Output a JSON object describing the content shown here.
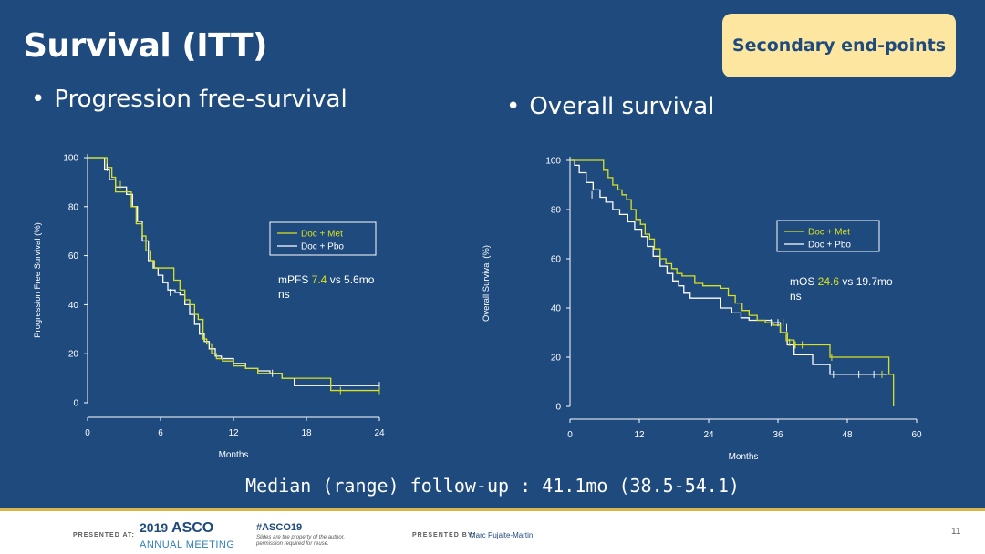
{
  "slide": {
    "title": "Survival (ITT)",
    "badge": "Secondary end-points",
    "followup": "Median (range) follow-up : 41.1mo (38.5-54.1)"
  },
  "colors": {
    "background": "#1e4a7e",
    "badge_bg": "#fce6a0",
    "met": "#d8e020",
    "pbo": "#ffffff",
    "footer_accent": "#d9b54a"
  },
  "chart_data": [
    {
      "type": "line",
      "title": "Progression free-survival",
      "xlabel": "Months",
      "ylabel": "Progression Free Survival (%)",
      "xlim": [
        0,
        24
      ],
      "ylim": [
        0,
        100
      ],
      "xticks": [
        0,
        6,
        12,
        18,
        24
      ],
      "yticks": [
        0,
        20,
        40,
        60,
        80,
        100
      ],
      "legend": [
        "Doc + Met",
        "Doc + Pbo"
      ],
      "annotation": {
        "prefix": "mPFS ",
        "highlight": "7.4",
        "suffix": " vs 5.6mo",
        "line2": "ns"
      },
      "series": [
        {
          "name": "Doc + Met",
          "color": "#d8e020",
          "x": [
            0,
            1.2,
            1.6,
            2.0,
            2.3,
            3.2,
            3.6,
            4.0,
            4.5,
            4.8,
            5.2,
            5.5,
            5.8,
            6.2,
            7.1,
            7.6,
            8.0,
            8.4,
            8.8,
            9.1,
            9.5,
            9.8,
            10.2,
            10.6,
            11.1,
            12.0,
            13.0,
            14.0,
            15.0,
            16.0,
            18.5,
            20.0,
            24.0
          ],
          "y": [
            100,
            100,
            96,
            92,
            86,
            86,
            80,
            73,
            68,
            62,
            58,
            55,
            55,
            55,
            50,
            46,
            42,
            40,
            36,
            34,
            26,
            24,
            20,
            18,
            17,
            15,
            14,
            12,
            12,
            10,
            10,
            5,
            5
          ]
        },
        {
          "name": "Doc + Pbo",
          "color": "#ffffff",
          "x": [
            0,
            1.0,
            1.4,
            1.8,
            2.3,
            3.2,
            3.7,
            4.1,
            4.5,
            5.0,
            5.4,
            5.8,
            6.2,
            6.6,
            7.2,
            7.6,
            8.0,
            8.4,
            8.8,
            9.2,
            9.6,
            10.0,
            10.5,
            11.0,
            12.0,
            13.0,
            14.0,
            15.0,
            16.0,
            17.0,
            24.0
          ],
          "y": [
            100,
            100,
            95,
            91,
            88,
            85,
            80,
            74,
            66,
            58,
            55,
            52,
            49,
            46,
            45,
            44,
            40,
            36,
            32,
            28,
            25,
            22,
            19,
            18,
            16,
            14,
            13,
            12,
            10,
            7,
            7
          ]
        }
      ],
      "censor_met": [
        [
          2.7,
          89
        ],
        [
          20.8,
          5
        ],
        [
          24.0,
          5
        ]
      ],
      "censor_pbo": [
        [
          1.6,
          96
        ],
        [
          6.8,
          45
        ],
        [
          15.2,
          12
        ],
        [
          24.0,
          7
        ]
      ]
    },
    {
      "type": "line",
      "title": "Overall survival",
      "xlabel": "Months",
      "ylabel": "Overall Survival (%)",
      "xlim": [
        0,
        60
      ],
      "ylim": [
        0,
        100
      ],
      "xticks": [
        0,
        12,
        24,
        36,
        48,
        60
      ],
      "yticks": [
        0,
        20,
        40,
        60,
        80,
        100
      ],
      "legend": [
        "Doc + Met",
        "Doc + Pbo"
      ],
      "annotation": {
        "prefix": "mOS ",
        "highlight": "24.6",
        "suffix": " vs 19.7mo",
        "line2": "ns"
      },
      "series": [
        {
          "name": "Doc + Met",
          "color": "#d8e020",
          "x": [
            0,
            5.0,
            5.8,
            6.6,
            7.4,
            8.3,
            9.0,
            9.8,
            10.6,
            11.4,
            12.2,
            13.0,
            13.8,
            14.6,
            15.6,
            16.6,
            17.6,
            18.5,
            19.4,
            20.5,
            21.6,
            23.0,
            24.6,
            26.0,
            27.4,
            28.6,
            29.8,
            31.0,
            32.4,
            33.8,
            35.2,
            36.4,
            37.6,
            38.8,
            40.6,
            44.0,
            45.0,
            54.0,
            55.2,
            56.0
          ],
          "y": [
            100,
            100,
            96,
            93,
            90,
            88,
            86,
            84,
            80,
            76,
            74,
            70,
            68,
            64,
            60,
            58,
            56,
            54,
            53,
            53,
            50,
            49,
            49,
            48,
            45,
            42,
            39,
            37,
            35,
            34,
            33,
            30,
            27,
            25,
            25,
            25,
            20,
            20,
            13,
            0
          ]
        },
        {
          "name": "Doc + Pbo",
          "color": "#ffffff",
          "x": [
            0,
            0.8,
            1.6,
            2.8,
            4.0,
            5.2,
            6.2,
            7.4,
            8.6,
            10.0,
            11.2,
            12.4,
            13.4,
            14.4,
            15.6,
            16.8,
            17.8,
            18.8,
            19.7,
            20.8,
            22.0,
            24.0,
            26.0,
            28.0,
            29.6,
            31.0,
            32.4,
            33.6,
            35.0,
            36.4,
            37.6,
            38.8,
            40.6,
            42.0,
            43.4,
            45.0,
            55.0
          ],
          "y": [
            100,
            98,
            95,
            91,
            88,
            85,
            83,
            80,
            78,
            75,
            72,
            69,
            65,
            61,
            57,
            54,
            51,
            49,
            46,
            44,
            44,
            44,
            40,
            38,
            36,
            35,
            35,
            35,
            34,
            30,
            25,
            21,
            21,
            17,
            17,
            13,
            13
          ]
        }
      ],
      "censor_met": [
        [
          36.9,
          34
        ],
        [
          37.4,
          28
        ],
        [
          38.0,
          26
        ],
        [
          39.0,
          25
        ],
        [
          40.2,
          25
        ],
        [
          45.3,
          20
        ],
        [
          54.0,
          13
        ]
      ],
      "censor_pbo": [
        [
          3.8,
          86
        ],
        [
          34.8,
          34
        ],
        [
          36.0,
          34
        ],
        [
          37.5,
          32
        ],
        [
          45.6,
          13
        ],
        [
          50.0,
          13
        ],
        [
          52.6,
          13
        ]
      ]
    }
  ],
  "footer": {
    "presented_at": "PRESENTED AT:",
    "logo_year": "2019",
    "logo_name": "ASCO",
    "logo_sub": "ANNUAL MEETING",
    "hashtag": "#ASCO19",
    "disclaimer": "Slides are the property of the author, permission required for reuse.",
    "presented_by": "PRESENTED BY:",
    "presenter": "Marc Pujalte-Martin",
    "page": "11"
  }
}
